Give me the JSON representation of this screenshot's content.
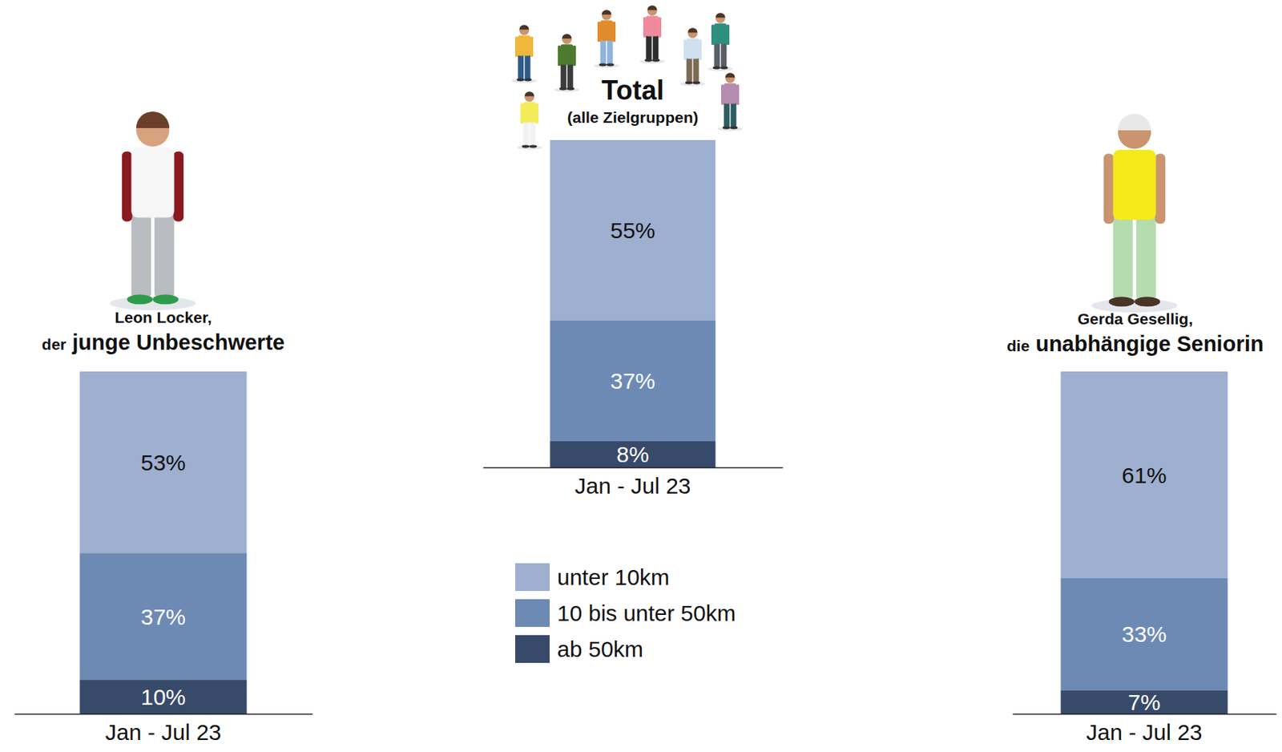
{
  "chart_data": [
    {
      "type": "bar",
      "stacked": true,
      "data_labels": true,
      "tick_labels": "x",
      "title": "Leon Locker,",
      "subtitle": "der junge Unbeschwerte",
      "categories": [
        "Jan - Jul 23"
      ],
      "ylim": [
        0,
        100
      ],
      "series": [
        {
          "color": "#9eafcf",
          "values": [
            53
          ],
          "value_labels": [
            "53%"
          ]
        },
        {
          "color": "#6d8ab5",
          "values": [
            37
          ],
          "value_labels": [
            "37%"
          ]
        },
        {
          "color": "#384a69",
          "values": [
            10
          ],
          "value_labels": [
            "10%"
          ]
        }
      ]
    },
    {
      "type": "bar",
      "stacked": true,
      "data_labels": true,
      "tick_labels": "x",
      "legend": "bottom",
      "title": "Total",
      "subtitle": "(alle Zielgruppen)",
      "categories": [
        "Jan - Jul 23"
      ],
      "ylim": [
        0,
        100
      ],
      "series": [
        {
          "name": "unter 10km",
          "color": "#9eafcf",
          "values": [
            55
          ],
          "value_labels": [
            "55%"
          ]
        },
        {
          "name": "10 bis unter 50km",
          "color": "#6d8ab5",
          "values": [
            37
          ],
          "value_labels": [
            "37%"
          ]
        },
        {
          "name": "ab 50km",
          "color": "#384a69",
          "values": [
            8
          ],
          "value_labels": [
            "8%"
          ]
        }
      ]
    },
    {
      "type": "bar",
      "stacked": true,
      "data_labels": true,
      "tick_labels": "x",
      "title": "Gerda Gesellig,",
      "subtitle": "die unabhängige Seniorin",
      "categories": [
        "Jan - Jul 23"
      ],
      "ylim": [
        0,
        101
      ],
      "series": [
        {
          "color": "#9eafcf",
          "values": [
            61
          ],
          "value_labels": [
            "61%"
          ]
        },
        {
          "color": "#6d8ab5",
          "values": [
            33
          ],
          "value_labels": [
            "33%"
          ]
        },
        {
          "color": "#384a69",
          "values": [
            7
          ],
          "value_labels": [
            "7%"
          ]
        }
      ]
    }
  ]
}
